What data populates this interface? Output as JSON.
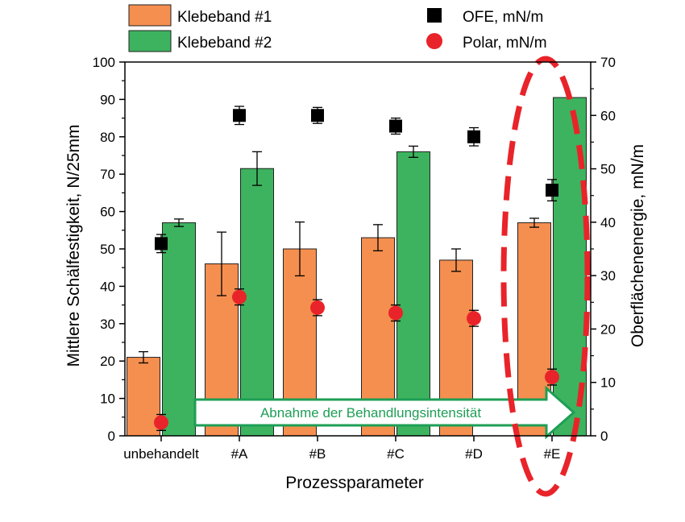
{
  "chart_data": {
    "type": "bar",
    "categories": [
      "unbehandelt",
      "#A",
      "#B",
      "#C",
      "#D",
      "#E"
    ],
    "xlabel": "Prozessparameter",
    "ylabel": "Mittlere Schälfestigkeit,  N/25mm",
    "ylabel_right": "Oberflächenenergie, mN/m",
    "ylim": [
      0,
      100
    ],
    "ylim_right": [
      0,
      70
    ],
    "yticks": [
      "0",
      "10",
      "20",
      "30",
      "40",
      "50",
      "60",
      "70",
      "80",
      "90",
      "100"
    ],
    "yticks_right": [
      "0",
      "10",
      "20",
      "30",
      "40",
      "50",
      "60",
      "70"
    ],
    "series": [
      {
        "name": "Klebeband #1",
        "kind": "bar",
        "axis": "left",
        "color": "#F58F4F",
        "values": [
          21,
          46,
          null,
          53,
          47,
          57
        ],
        "errors": [
          1.5,
          8.5,
          null,
          3.5,
          3,
          1.2
        ],
        "values_note": ""
      },
      {
        "name": "Klebeband #2",
        "kind": "bar",
        "axis": "left",
        "color": "#3DB35F",
        "values": [
          57,
          71.5,
          null,
          76,
          null,
          90.5
        ],
        "errors": [
          1,
          4.5,
          null,
          1.5,
          null,
          0
        ]
      },
      {
        "name": "OFE, mN/m",
        "kind": "scatter",
        "marker": "square",
        "axis": "right",
        "color": "#000000",
        "values": [
          36,
          60,
          60,
          58,
          56,
          46
        ],
        "errors": [
          1.7,
          1.7,
          1.5,
          1.5,
          1.7,
          2
        ]
      },
      {
        "name": "Polar, mN/m",
        "kind": "scatter",
        "marker": "circle",
        "axis": "right",
        "color": "#E8242A",
        "values": [
          2.5,
          26,
          24,
          23,
          22,
          11
        ],
        "errors": [
          1.5,
          1.5,
          1.5,
          1.5,
          1.5,
          1.5
        ]
      }
    ],
    "bar_extra": {
      "B_klebeband1": 50,
      "B_klebeband1_err": 7.2,
      "D_klebeband2_absent": true
    },
    "annotations": {
      "arrow_text": "Abnahme der Behandlungsintensität",
      "arrow_color": "#1E9E55",
      "highlight_color": "#E8242A",
      "highlight_target": "#E"
    },
    "legend_placement": "top"
  }
}
